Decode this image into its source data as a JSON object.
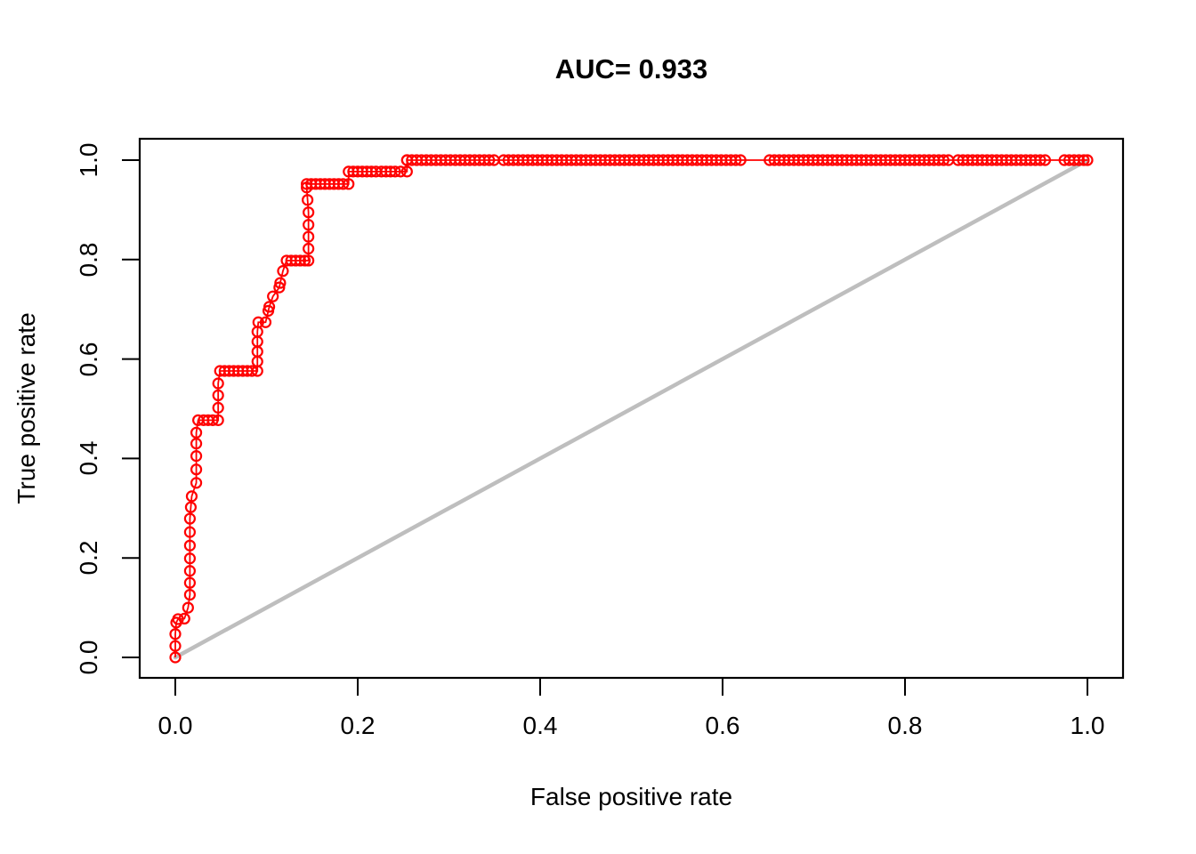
{
  "chart_data": {
    "type": "line",
    "subtype": "roc-curve-step",
    "title": "AUC= 0.933",
    "auc": 0.933,
    "xlabel": "False positive rate",
    "ylabel": "True positive rate",
    "xlim": [
      0.0,
      1.0
    ],
    "ylim": [
      0.0,
      1.0
    ],
    "x_ticks": [
      0.0,
      0.2,
      0.4,
      0.6,
      0.8,
      1.0
    ],
    "y_ticks": [
      0.0,
      0.2,
      0.4,
      0.6,
      0.8,
      1.0
    ],
    "grid": false,
    "legend": "none",
    "marker": "open-circle",
    "curve_color": "#FF0000",
    "reference_line": {
      "from": [
        0,
        0
      ],
      "to": [
        1,
        1
      ],
      "color": "#BEBEBE"
    },
    "points": [
      [
        0.0,
        0.0
      ],
      [
        0.0,
        0.023
      ],
      [
        0.0,
        0.047
      ],
      [
        0.001,
        0.07
      ],
      [
        0.003,
        0.077
      ],
      [
        0.01,
        0.078
      ],
      [
        0.014,
        0.1
      ],
      [
        0.016,
        0.126
      ],
      [
        0.016,
        0.15
      ],
      [
        0.016,
        0.174
      ],
      [
        0.016,
        0.199
      ],
      [
        0.016,
        0.225
      ],
      [
        0.016,
        0.252
      ],
      [
        0.016,
        0.279
      ],
      [
        0.017,
        0.302
      ],
      [
        0.018,
        0.324
      ],
      [
        0.023,
        0.351
      ],
      [
        0.023,
        0.378
      ],
      [
        0.023,
        0.405
      ],
      [
        0.023,
        0.43
      ],
      [
        0.023,
        0.452
      ],
      [
        0.025,
        0.477
      ],
      [
        0.031,
        0.477
      ],
      [
        0.036,
        0.477
      ],
      [
        0.041,
        0.477
      ],
      [
        0.047,
        0.477
      ],
      [
        0.047,
        0.502
      ],
      [
        0.047,
        0.527
      ],
      [
        0.047,
        0.551
      ],
      [
        0.049,
        0.576
      ],
      [
        0.054,
        0.576
      ],
      [
        0.059,
        0.576
      ],
      [
        0.064,
        0.576
      ],
      [
        0.069,
        0.576
      ],
      [
        0.074,
        0.576
      ],
      [
        0.079,
        0.576
      ],
      [
        0.084,
        0.576
      ],
      [
        0.09,
        0.576
      ],
      [
        0.09,
        0.595
      ],
      [
        0.09,
        0.615
      ],
      [
        0.09,
        0.635
      ],
      [
        0.09,
        0.655
      ],
      [
        0.091,
        0.674
      ],
      [
        0.099,
        0.674
      ],
      [
        0.102,
        0.697
      ],
      [
        0.103,
        0.705
      ],
      [
        0.107,
        0.726
      ],
      [
        0.114,
        0.744
      ],
      [
        0.115,
        0.753
      ],
      [
        0.118,
        0.777
      ],
      [
        0.122,
        0.798
      ],
      [
        0.127,
        0.798
      ],
      [
        0.132,
        0.798
      ],
      [
        0.137,
        0.798
      ],
      [
        0.142,
        0.798
      ],
      [
        0.146,
        0.798
      ],
      [
        0.146,
        0.822
      ],
      [
        0.146,
        0.846
      ],
      [
        0.146,
        0.87
      ],
      [
        0.146,
        0.895
      ],
      [
        0.145,
        0.92
      ],
      [
        0.144,
        0.945
      ],
      [
        0.144,
        0.952
      ],
      [
        0.149,
        0.952
      ],
      [
        0.154,
        0.952
      ],
      [
        0.159,
        0.952
      ],
      [
        0.164,
        0.952
      ],
      [
        0.169,
        0.952
      ],
      [
        0.174,
        0.952
      ],
      [
        0.179,
        0.952
      ],
      [
        0.184,
        0.952
      ],
      [
        0.19,
        0.952
      ],
      [
        0.19,
        0.977
      ],
      [
        0.195,
        0.977
      ],
      [
        0.2,
        0.977
      ],
      [
        0.205,
        0.977
      ],
      [
        0.21,
        0.977
      ],
      [
        0.215,
        0.977
      ],
      [
        0.22,
        0.977
      ],
      [
        0.226,
        0.977
      ],
      [
        0.231,
        0.977
      ],
      [
        0.236,
        0.977
      ],
      [
        0.241,
        0.977
      ],
      [
        0.247,
        0.977
      ],
      [
        0.254,
        0.977
      ],
      [
        0.254,
        1.0
      ]
    ],
    "top_plateau": {
      "tpr": 1.0,
      "fpr_start": 0.254,
      "fpr_end": 1.0,
      "marker_step": 0.0053,
      "marker_gaps": [
        [
          0.352,
          0.357
        ],
        [
          0.622,
          0.65
        ],
        [
          0.849,
          0.858
        ],
        [
          0.954,
          0.972
        ]
      ]
    }
  }
}
